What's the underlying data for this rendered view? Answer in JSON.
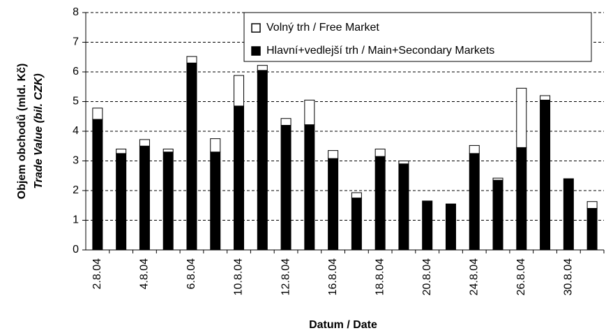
{
  "chart_data": {
    "type": "stacked_bar",
    "ylabel": [
      "Objem obchodů (mld. Kč)",
      "Trade Value (bil. CZK)"
    ],
    "xlabel": "Datum / Date",
    "categories": [
      "2.8.04",
      null,
      "4.8.04",
      null,
      "6.8.04",
      null,
      "10.8.04",
      null,
      "12.8.04",
      null,
      "16.8.04",
      null,
      "18.8.04",
      null,
      "20.8.04",
      null,
      "24.8.04",
      null,
      "26.8.04",
      null,
      "30.8.04",
      null
    ],
    "series": [
      {
        "name": "Hlavní+vedlejší trh / Main+Secondary Markets",
        "color": "#000000",
        "values": [
          4.4,
          3.25,
          3.5,
          3.3,
          6.3,
          3.3,
          4.85,
          6.05,
          4.2,
          4.22,
          3.08,
          1.75,
          3.15,
          2.9,
          1.65,
          1.55,
          3.25,
          2.35,
          3.45,
          5.05,
          2.4,
          1.4
        ]
      },
      {
        "name": "Volný trh / Free Market",
        "color": "#ffffff",
        "values": [
          0.38,
          0.15,
          0.22,
          0.1,
          0.22,
          0.45,
          1.03,
          0.17,
          0.23,
          0.83,
          0.27,
          0.18,
          0.25,
          0.1,
          0,
          0,
          0.27,
          0.07,
          2.0,
          0.15,
          0,
          0.23
        ]
      }
    ],
    "ylim": [
      0,
      8
    ],
    "yticks": [
      0,
      1,
      2,
      3,
      4,
      5,
      6,
      7,
      8
    ],
    "grid": true,
    "legend": "top-right"
  }
}
